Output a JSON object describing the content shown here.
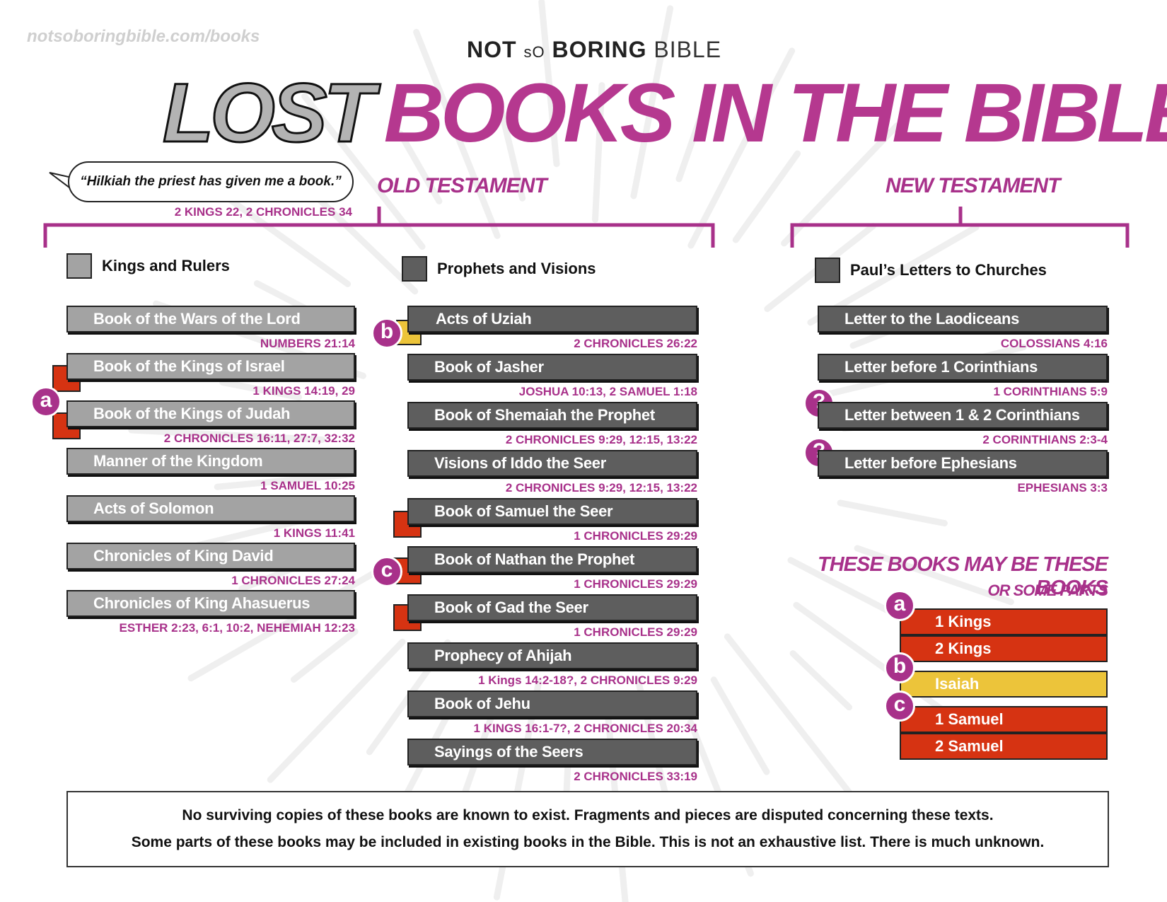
{
  "site_url": "notsoboringbible.com/books",
  "brand": {
    "not": "NOT ",
    "so": "sO",
    "boring": " BORING ",
    "bible": "BIBLE"
  },
  "title": {
    "lost": "LOST",
    "rest": "BOOKS IN THE BIBLE"
  },
  "quote": {
    "text": "“Hilkiah the priest has given me a book.”",
    "ref": "2 KINGS 22, 2 CHRONICLES 34"
  },
  "old_testament": {
    "heading": "OLD TESTAMENT",
    "kings": {
      "label": "Kings and Rulers",
      "books": [
        {
          "title": "Book of the Wars of the Lord",
          "ref": "NUMBERS 21:14"
        },
        {
          "title": "Book of the Kings of Israel",
          "ref": "1 KINGS 14:19, 29"
        },
        {
          "title": "Book of the Kings of Judah",
          "ref": "2 CHRONICLES 16:11, 27:7, 32:32"
        },
        {
          "title": "Manner of the Kingdom",
          "ref": "1 SAMUEL 10:25"
        },
        {
          "title": "Acts of Solomon",
          "ref": "1 KINGS 11:41"
        },
        {
          "title": "Chronicles of King David",
          "ref": "1 CHRONICLES 27:24"
        },
        {
          "title": "Chronicles of King Ahasuerus",
          "ref": "ESTHER 2:23, 6:1, 10:2, NEHEMIAH 12:23"
        }
      ]
    },
    "prophets": {
      "label": "Prophets and Visions",
      "books": [
        {
          "title": "Acts of Uziah",
          "ref": "2 CHRONICLES 26:22"
        },
        {
          "title": "Book of Jasher",
          "ref": "JOSHUA 10:13, 2 SAMUEL 1:18"
        },
        {
          "title": "Book of Shemaiah the Prophet",
          "ref": "2 CHRONICLES 9:29, 12:15, 13:22"
        },
        {
          "title": "Visions of Iddo the Seer",
          "ref": "2 CHRONICLES 9:29, 12:15, 13:22"
        },
        {
          "title": "Book of Samuel the Seer",
          "ref": "1 CHRONICLES 29:29"
        },
        {
          "title": "Book of Nathan the Prophet",
          "ref": "1 CHRONICLES 29:29"
        },
        {
          "title": "Book of Gad the Seer",
          "ref": "1 CHRONICLES 29:29"
        },
        {
          "title": "Prophecy of Ahijah",
          "ref": "1 Kings 14:2-18?, 2 CHRONICLES 9:29"
        },
        {
          "title": "Book of Jehu",
          "ref": "1 KINGS 16:1-7?, 2 CHRONICLES 20:34"
        },
        {
          "title": "Sayings of the Seers",
          "ref": "2 CHRONICLES 33:19"
        }
      ]
    }
  },
  "new_testament": {
    "heading": "NEW TESTAMENT",
    "label": "Paul’s Letters to Churches",
    "books": [
      {
        "title": "Letter to the Laodiceans",
        "ref": "COLOSSIANS 4:16"
      },
      {
        "title": "Letter before 1 Corinthians",
        "ref": "1 CORINTHIANS 5:9"
      },
      {
        "title": "Letter between 1 & 2 Corinthians",
        "ref": "2 CORINTHIANS 2:3-4"
      },
      {
        "title": "Letter before Ephesians",
        "ref": "EPHESIANS 3:3"
      }
    ]
  },
  "badges": {
    "a": "a",
    "b": "b",
    "c": "c",
    "q": "?"
  },
  "mapping": {
    "heading": "THESE BOOKS MAY BE THESE BOOKS",
    "subheading": "OR SOME PARTS",
    "a": [
      "1 Kings",
      "2 Kings"
    ],
    "b": [
      "Isaiah"
    ],
    "c": [
      "1 Samuel",
      "2 Samuel"
    ]
  },
  "footer": {
    "line1": "No surviving copies of these books are known to exist. Fragments and pieces are disputed concerning these texts.",
    "line2": "Some parts of these books may be included in existing books in the Bible. This is not an exhaustive list. There is much unknown."
  },
  "colors": {
    "magenta": "#a8318a",
    "light_gray": "#a3a3a3",
    "dark_gray": "#5e5e5e",
    "red": "#d63312",
    "yellow": "#ecc43a"
  }
}
